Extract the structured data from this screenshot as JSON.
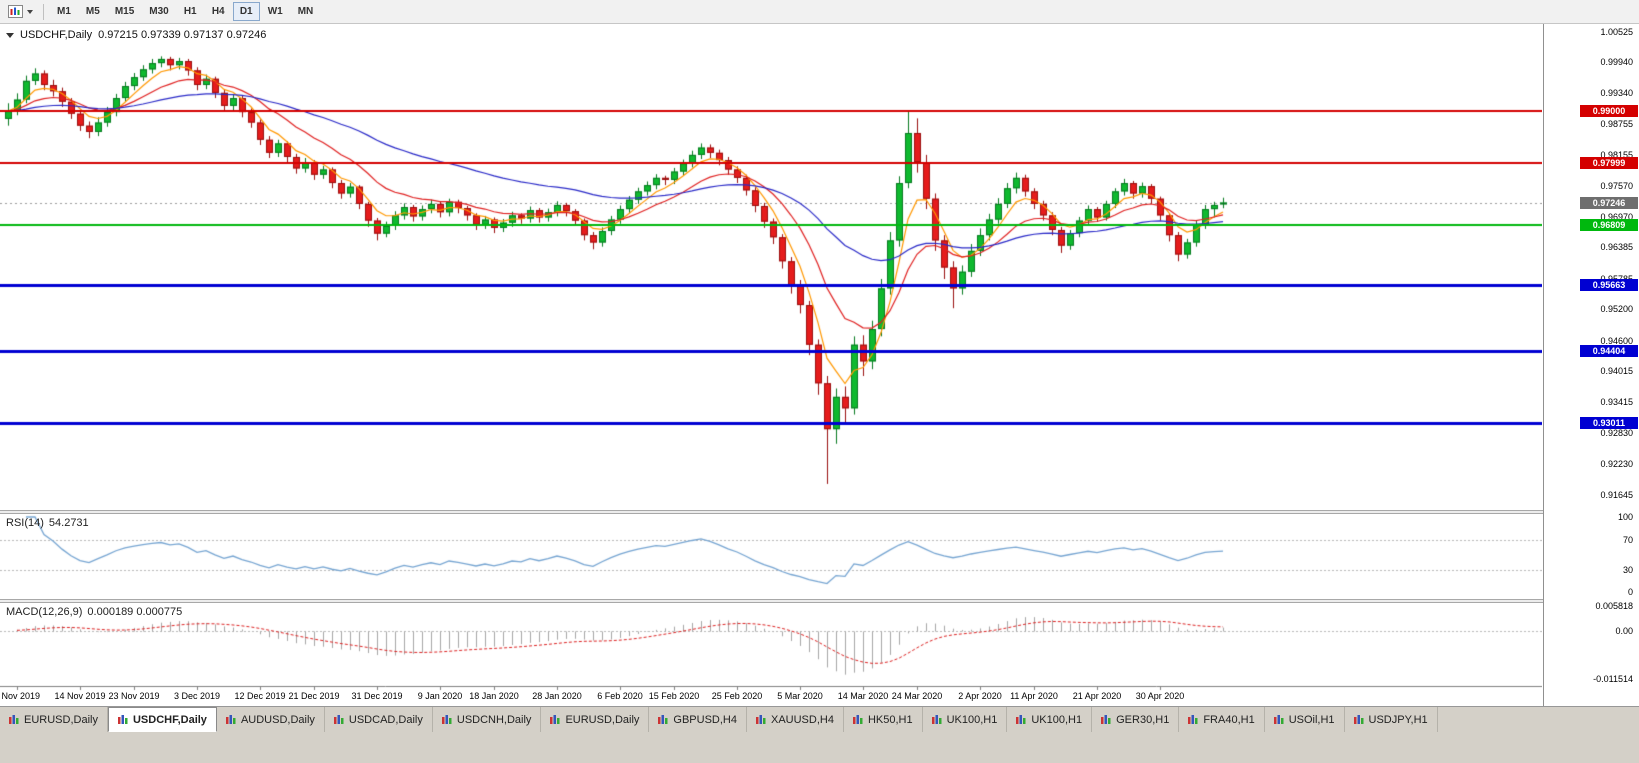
{
  "header": {
    "symbol_title": "USDCHF,Daily",
    "ohlc_text": "0.97215 0.97339 0.97137 0.97246"
  },
  "toolbar": {
    "timeframes": [
      {
        "label": "M1",
        "active": false
      },
      {
        "label": "M5",
        "active": false
      },
      {
        "label": "M15",
        "active": false
      },
      {
        "label": "M30",
        "active": false
      },
      {
        "label": "H1",
        "active": false
      },
      {
        "label": "H4",
        "active": false
      },
      {
        "label": "D1",
        "active": true
      },
      {
        "label": "W1",
        "active": false
      },
      {
        "label": "MN",
        "active": false
      }
    ]
  },
  "tabs": [
    {
      "label": "EURUSD,Daily",
      "active": false
    },
    {
      "label": "USDCHF,Daily",
      "active": true
    },
    {
      "label": "AUDUSD,Daily",
      "active": false
    },
    {
      "label": "USDCAD,Daily",
      "active": false
    },
    {
      "label": "USDCNH,Daily",
      "active": false
    },
    {
      "label": "EURUSD,Daily",
      "active": false
    },
    {
      "label": "GBPUSD,H4",
      "active": false
    },
    {
      "label": "XAUUSD,H4",
      "active": false
    },
    {
      "label": "HK50,H1",
      "active": false
    },
    {
      "label": "UK100,H1",
      "active": false
    },
    {
      "label": "UK100,H1",
      "active": false
    },
    {
      "label": "GER30,H1",
      "active": false
    },
    {
      "label": "FRA40,H1",
      "active": false
    },
    {
      "label": "USOil,H1",
      "active": false
    },
    {
      "label": "USDJPY,H1",
      "active": false
    }
  ],
  "chart_data": {
    "type": "candlestick",
    "symbol": "USDCHF",
    "timeframe": "Daily",
    "last_ohlc": {
      "open": "0.97215",
      "high": "0.97339",
      "low": "0.97137",
      "close": "0.97246"
    },
    "colors": {
      "bull_body": "#0fb92f",
      "bull_border": "#067a20",
      "bear_body": "#e51c1c",
      "bear_border": "#9a0f0f",
      "background": "#ffffff",
      "axis_text": "#000000"
    },
    "price_axis": {
      "max": 1.0067,
      "min": 0.9135,
      "labels": [
        "1.00525",
        "0.99940",
        "0.99340",
        "0.98755",
        "0.98155",
        "0.97570",
        "0.96970",
        "0.96385",
        "0.95785",
        "0.95200",
        "0.94600",
        "0.94015",
        "0.93415",
        "0.92830",
        "0.92230",
        "0.91645"
      ]
    },
    "x_labels": [
      {
        "text": "5 Nov 2019",
        "bar": 1
      },
      {
        "text": "14 Nov 2019",
        "bar": 8
      },
      {
        "text": "23 Nov 2019",
        "bar": 14
      },
      {
        "text": "3 Dec 2019",
        "bar": 21
      },
      {
        "text": "12 Dec 2019",
        "bar": 28
      },
      {
        "text": "21 Dec 2019",
        "bar": 34
      },
      {
        "text": "31 Dec 2019",
        "bar": 41
      },
      {
        "text": "9 Jan 2020",
        "bar": 48
      },
      {
        "text": "18 Jan 2020",
        "bar": 54
      },
      {
        "text": "28 Jan 2020",
        "bar": 61
      },
      {
        "text": "6 Feb 2020",
        "bar": 68
      },
      {
        "text": "15 Feb 2020",
        "bar": 74
      },
      {
        "text": "25 Feb 2020",
        "bar": 81
      },
      {
        "text": "5 Mar 2020",
        "bar": 88
      },
      {
        "text": "14 Mar 2020",
        "bar": 95
      },
      {
        "text": "24 Mar 2020",
        "bar": 101
      },
      {
        "text": "2 Apr 2020",
        "bar": 108
      },
      {
        "text": "11 Apr 2020",
        "bar": 114
      },
      {
        "text": "21 Apr 2020",
        "bar": 121
      },
      {
        "text": "30 Apr 2020",
        "bar": 128
      }
    ],
    "horizontal_levels": [
      {
        "price": 0.99,
        "label": "0.99000",
        "color": "#d40000",
        "width": 2
      },
      {
        "price": 0.97999,
        "label": "0.97999",
        "color": "#d40000",
        "width": 2
      },
      {
        "price": 0.96809,
        "label": "0.96809",
        "color": "#00b80e",
        "width": 2
      },
      {
        "price": 0.95663,
        "label": "0.95663",
        "color": "#0000d2",
        "width": 3
      },
      {
        "price": 0.94404,
        "label": "0.94404",
        "color": "#0000d2",
        "width": 3
      },
      {
        "price": 0.93011,
        "label": "0.93011",
        "color": "#0000d2",
        "width": 3
      }
    ],
    "current_price": {
      "price": 0.97246,
      "label": "0.97246",
      "line_color": "#9b9b9b",
      "badge_color": "#6e6e6e"
    },
    "moving_averages": [
      {
        "name": "ma-fast",
        "period": 5,
        "color": "#ff9800"
      },
      {
        "name": "ma-medium",
        "period": 13,
        "color": "#e02020"
      },
      {
        "name": "ma-slow",
        "period": 40,
        "color": "#2929c8"
      }
    ],
    "rsi_panel": {
      "title": "RSI(14)",
      "value": "54.2731",
      "period": 14,
      "line_color": "#76a5d2",
      "guide_levels": [
        70,
        30
      ],
      "scale_labels": [
        "100",
        "70",
        "30",
        "0"
      ],
      "range_min": 0,
      "range_max": 100
    },
    "macd_panel": {
      "title": "MACD(12,26,9)",
      "value": "0.000189 0.000775",
      "fast": 12,
      "slow": 26,
      "signal": 9,
      "histogram_color": "#a6a6a6",
      "signal_color": "#dd2222",
      "scale_labels": [
        "0.005818",
        "0.00",
        "-0.011514"
      ],
      "range_min": -0.011514,
      "range_max": 0.005818
    },
    "candles": [
      [
        0.9885,
        0.9915,
        0.9872,
        0.99
      ],
      [
        0.99,
        0.9934,
        0.9892,
        0.9922
      ],
      [
        0.9922,
        0.9968,
        0.9915,
        0.9958
      ],
      [
        0.9958,
        0.9982,
        0.995,
        0.9972
      ],
      [
        0.9972,
        0.9978,
        0.994,
        0.995
      ],
      [
        0.995,
        0.996,
        0.9928,
        0.9938
      ],
      [
        0.9938,
        0.9945,
        0.9908,
        0.9918
      ],
      [
        0.9918,
        0.9925,
        0.9885,
        0.9895
      ],
      [
        0.9895,
        0.9902,
        0.9862,
        0.9872
      ],
      [
        0.9872,
        0.988,
        0.9848,
        0.986
      ],
      [
        0.986,
        0.9888,
        0.9852,
        0.9878
      ],
      [
        0.9878,
        0.9908,
        0.987,
        0.9898
      ],
      [
        0.9898,
        0.9933,
        0.989,
        0.9925
      ],
      [
        0.9925,
        0.9956,
        0.9918,
        0.9948
      ],
      [
        0.9948,
        0.9973,
        0.994,
        0.9965
      ],
      [
        0.9965,
        0.9988,
        0.9958,
        0.998
      ],
      [
        0.998,
        1.0,
        0.9972,
        0.9992
      ],
      [
        0.9992,
        1.0005,
        0.9984,
        1.0
      ],
      [
        1.0,
        1.0004,
        0.9978,
        0.9988
      ],
      [
        0.9988,
        1.0002,
        0.998,
        0.9996
      ],
      [
        0.9996,
        1.0,
        0.9968,
        0.9978
      ],
      [
        0.9978,
        0.9984,
        0.994,
        0.995
      ],
      [
        0.995,
        0.997,
        0.9942,
        0.9962
      ],
      [
        0.9962,
        0.9966,
        0.9925,
        0.9935
      ],
      [
        0.9935,
        0.9942,
        0.99,
        0.991
      ],
      [
        0.991,
        0.9932,
        0.9902,
        0.9925
      ],
      [
        0.9925,
        0.993,
        0.9888,
        0.9898
      ],
      [
        0.9898,
        0.9905,
        0.9868,
        0.9878
      ],
      [
        0.9878,
        0.9884,
        0.9835,
        0.9845
      ],
      [
        0.9845,
        0.9852,
        0.981,
        0.982
      ],
      [
        0.982,
        0.9845,
        0.9812,
        0.9838
      ],
      [
        0.9838,
        0.9842,
        0.9802,
        0.9812
      ],
      [
        0.9812,
        0.9818,
        0.978,
        0.979
      ],
      [
        0.979,
        0.981,
        0.9782,
        0.9802
      ],
      [
        0.9802,
        0.9806,
        0.9768,
        0.9778
      ],
      [
        0.9778,
        0.9795,
        0.977,
        0.9788
      ],
      [
        0.9788,
        0.9792,
        0.9752,
        0.9762
      ],
      [
        0.9762,
        0.9768,
        0.9732,
        0.9742
      ],
      [
        0.9742,
        0.9762,
        0.9734,
        0.9755
      ],
      [
        0.9755,
        0.9758,
        0.9712,
        0.9722
      ],
      [
        0.9722,
        0.9726,
        0.9678,
        0.969
      ],
      [
        0.969,
        0.9695,
        0.9652,
        0.9665
      ],
      [
        0.9665,
        0.9688,
        0.9658,
        0.968
      ],
      [
        0.968,
        0.9708,
        0.9672,
        0.97
      ],
      [
        0.97,
        0.9723,
        0.9692,
        0.9716
      ],
      [
        0.9716,
        0.972,
        0.9688,
        0.9698
      ],
      [
        0.9698,
        0.9719,
        0.969,
        0.9712
      ],
      [
        0.9712,
        0.973,
        0.9704,
        0.9722
      ],
      [
        0.9722,
        0.9726,
        0.9696,
        0.9706
      ],
      [
        0.9706,
        0.9732,
        0.9698,
        0.9726
      ],
      [
        0.9726,
        0.973,
        0.9704,
        0.9714
      ],
      [
        0.9714,
        0.9718,
        0.969,
        0.97
      ],
      [
        0.97,
        0.9704,
        0.9672,
        0.9682
      ],
      [
        0.9682,
        0.9699,
        0.9674,
        0.9692
      ],
      [
        0.9692,
        0.9696,
        0.9666,
        0.9676
      ],
      [
        0.9676,
        0.9693,
        0.9668,
        0.9686
      ],
      [
        0.9686,
        0.9707,
        0.9678,
        0.97
      ],
      [
        0.97,
        0.9704,
        0.9684,
        0.9694
      ],
      [
        0.9694,
        0.9717,
        0.9686,
        0.971
      ],
      [
        0.971,
        0.9714,
        0.9686,
        0.9696
      ],
      [
        0.9696,
        0.9713,
        0.9688,
        0.9706
      ],
      [
        0.9706,
        0.9727,
        0.9698,
        0.972
      ],
      [
        0.972,
        0.9724,
        0.9698,
        0.9708
      ],
      [
        0.9708,
        0.9712,
        0.968,
        0.969
      ],
      [
        0.969,
        0.9694,
        0.9652,
        0.9662
      ],
      [
        0.9662,
        0.9668,
        0.9635,
        0.9648
      ],
      [
        0.9648,
        0.9677,
        0.964,
        0.967
      ],
      [
        0.967,
        0.9699,
        0.9662,
        0.9692
      ],
      [
        0.9692,
        0.9719,
        0.9684,
        0.9712
      ],
      [
        0.9712,
        0.9737,
        0.9704,
        0.973
      ],
      [
        0.973,
        0.9753,
        0.9722,
        0.9746
      ],
      [
        0.9746,
        0.9765,
        0.9738,
        0.9758
      ],
      [
        0.9758,
        0.9779,
        0.975,
        0.9772
      ],
      [
        0.9772,
        0.9776,
        0.9758,
        0.9768
      ],
      [
        0.9768,
        0.9791,
        0.976,
        0.9784
      ],
      [
        0.9784,
        0.9807,
        0.9776,
        0.98
      ],
      [
        0.98,
        0.9824,
        0.9792,
        0.9816
      ],
      [
        0.9816,
        0.9838,
        0.9808,
        0.983
      ],
      [
        0.983,
        0.9836,
        0.981,
        0.982
      ],
      [
        0.982,
        0.9826,
        0.9796,
        0.9806
      ],
      [
        0.9806,
        0.9812,
        0.9778,
        0.9788
      ],
      [
        0.9788,
        0.9794,
        0.9762,
        0.9772
      ],
      [
        0.9772,
        0.9778,
        0.9738,
        0.9748
      ],
      [
        0.9748,
        0.9754,
        0.9706,
        0.9718
      ],
      [
        0.9718,
        0.9724,
        0.9676,
        0.9688
      ],
      [
        0.9688,
        0.9694,
        0.9645,
        0.9658
      ],
      [
        0.9658,
        0.9664,
        0.9598,
        0.9612
      ],
      [
        0.9612,
        0.962,
        0.955,
        0.9566
      ],
      [
        0.9566,
        0.9576,
        0.9512,
        0.9528
      ],
      [
        0.9528,
        0.9536,
        0.9432,
        0.9452
      ],
      [
        0.9452,
        0.9462,
        0.9356,
        0.9378
      ],
      [
        0.9378,
        0.9392,
        0.9185,
        0.929
      ],
      [
        0.929,
        0.9368,
        0.9262,
        0.9352
      ],
      [
        0.9352,
        0.9372,
        0.9298,
        0.933
      ],
      [
        0.933,
        0.9468,
        0.9318,
        0.9452
      ],
      [
        0.9452,
        0.947,
        0.9392,
        0.942
      ],
      [
        0.942,
        0.9498,
        0.9405,
        0.9482
      ],
      [
        0.9482,
        0.9578,
        0.9468,
        0.956
      ],
      [
        0.956,
        0.9668,
        0.9548,
        0.9652
      ],
      [
        0.9652,
        0.9775,
        0.964,
        0.9762
      ],
      [
        0.9762,
        0.99,
        0.9752,
        0.9858
      ],
      [
        0.9858,
        0.9886,
        0.9782,
        0.9802
      ],
      [
        0.9802,
        0.9816,
        0.9712,
        0.9732
      ],
      [
        0.9732,
        0.9742,
        0.9632,
        0.9652
      ],
      [
        0.9652,
        0.9662,
        0.9578,
        0.96
      ],
      [
        0.96,
        0.9612,
        0.9522,
        0.956
      ],
      [
        0.956,
        0.9604,
        0.9548,
        0.9592
      ],
      [
        0.9592,
        0.9645,
        0.9582,
        0.9632
      ],
      [
        0.9632,
        0.9675,
        0.9622,
        0.9662
      ],
      [
        0.9662,
        0.9703,
        0.9652,
        0.9692
      ],
      [
        0.9692,
        0.9733,
        0.9684,
        0.9722
      ],
      [
        0.9722,
        0.9762,
        0.9714,
        0.9752
      ],
      [
        0.9752,
        0.9782,
        0.9742,
        0.9772
      ],
      [
        0.9772,
        0.9778,
        0.9736,
        0.9746
      ],
      [
        0.9746,
        0.9752,
        0.9712,
        0.9722
      ],
      [
        0.9722,
        0.9728,
        0.969,
        0.97
      ],
      [
        0.97,
        0.9706,
        0.9662,
        0.9672
      ],
      [
        0.9672,
        0.9678,
        0.9628,
        0.9642
      ],
      [
        0.9642,
        0.9672,
        0.9634,
        0.9666
      ],
      [
        0.9666,
        0.9697,
        0.9658,
        0.969
      ],
      [
        0.969,
        0.9719,
        0.9682,
        0.9712
      ],
      [
        0.9712,
        0.9716,
        0.9688,
        0.9696
      ],
      [
        0.9696,
        0.9728,
        0.969,
        0.9722
      ],
      [
        0.9722,
        0.9752,
        0.9714,
        0.9746
      ],
      [
        0.9746,
        0.977,
        0.9738,
        0.9762
      ],
      [
        0.9762,
        0.9766,
        0.9732,
        0.9742
      ],
      [
        0.9742,
        0.9763,
        0.9734,
        0.9756
      ],
      [
        0.9756,
        0.976,
        0.9722,
        0.9732
      ],
      [
        0.9732,
        0.9736,
        0.969,
        0.97
      ],
      [
        0.97,
        0.9704,
        0.965,
        0.9662
      ],
      [
        0.9662,
        0.9668,
        0.9612,
        0.9625
      ],
      [
        0.9625,
        0.9655,
        0.9617,
        0.9648
      ],
      [
        0.9648,
        0.969,
        0.964,
        0.9682
      ],
      [
        0.9682,
        0.972,
        0.9674,
        0.9712
      ],
      [
        0.9712,
        0.9726,
        0.9696,
        0.972
      ],
      [
        0.97215,
        0.97339,
        0.97137,
        0.97246
      ]
    ]
  }
}
